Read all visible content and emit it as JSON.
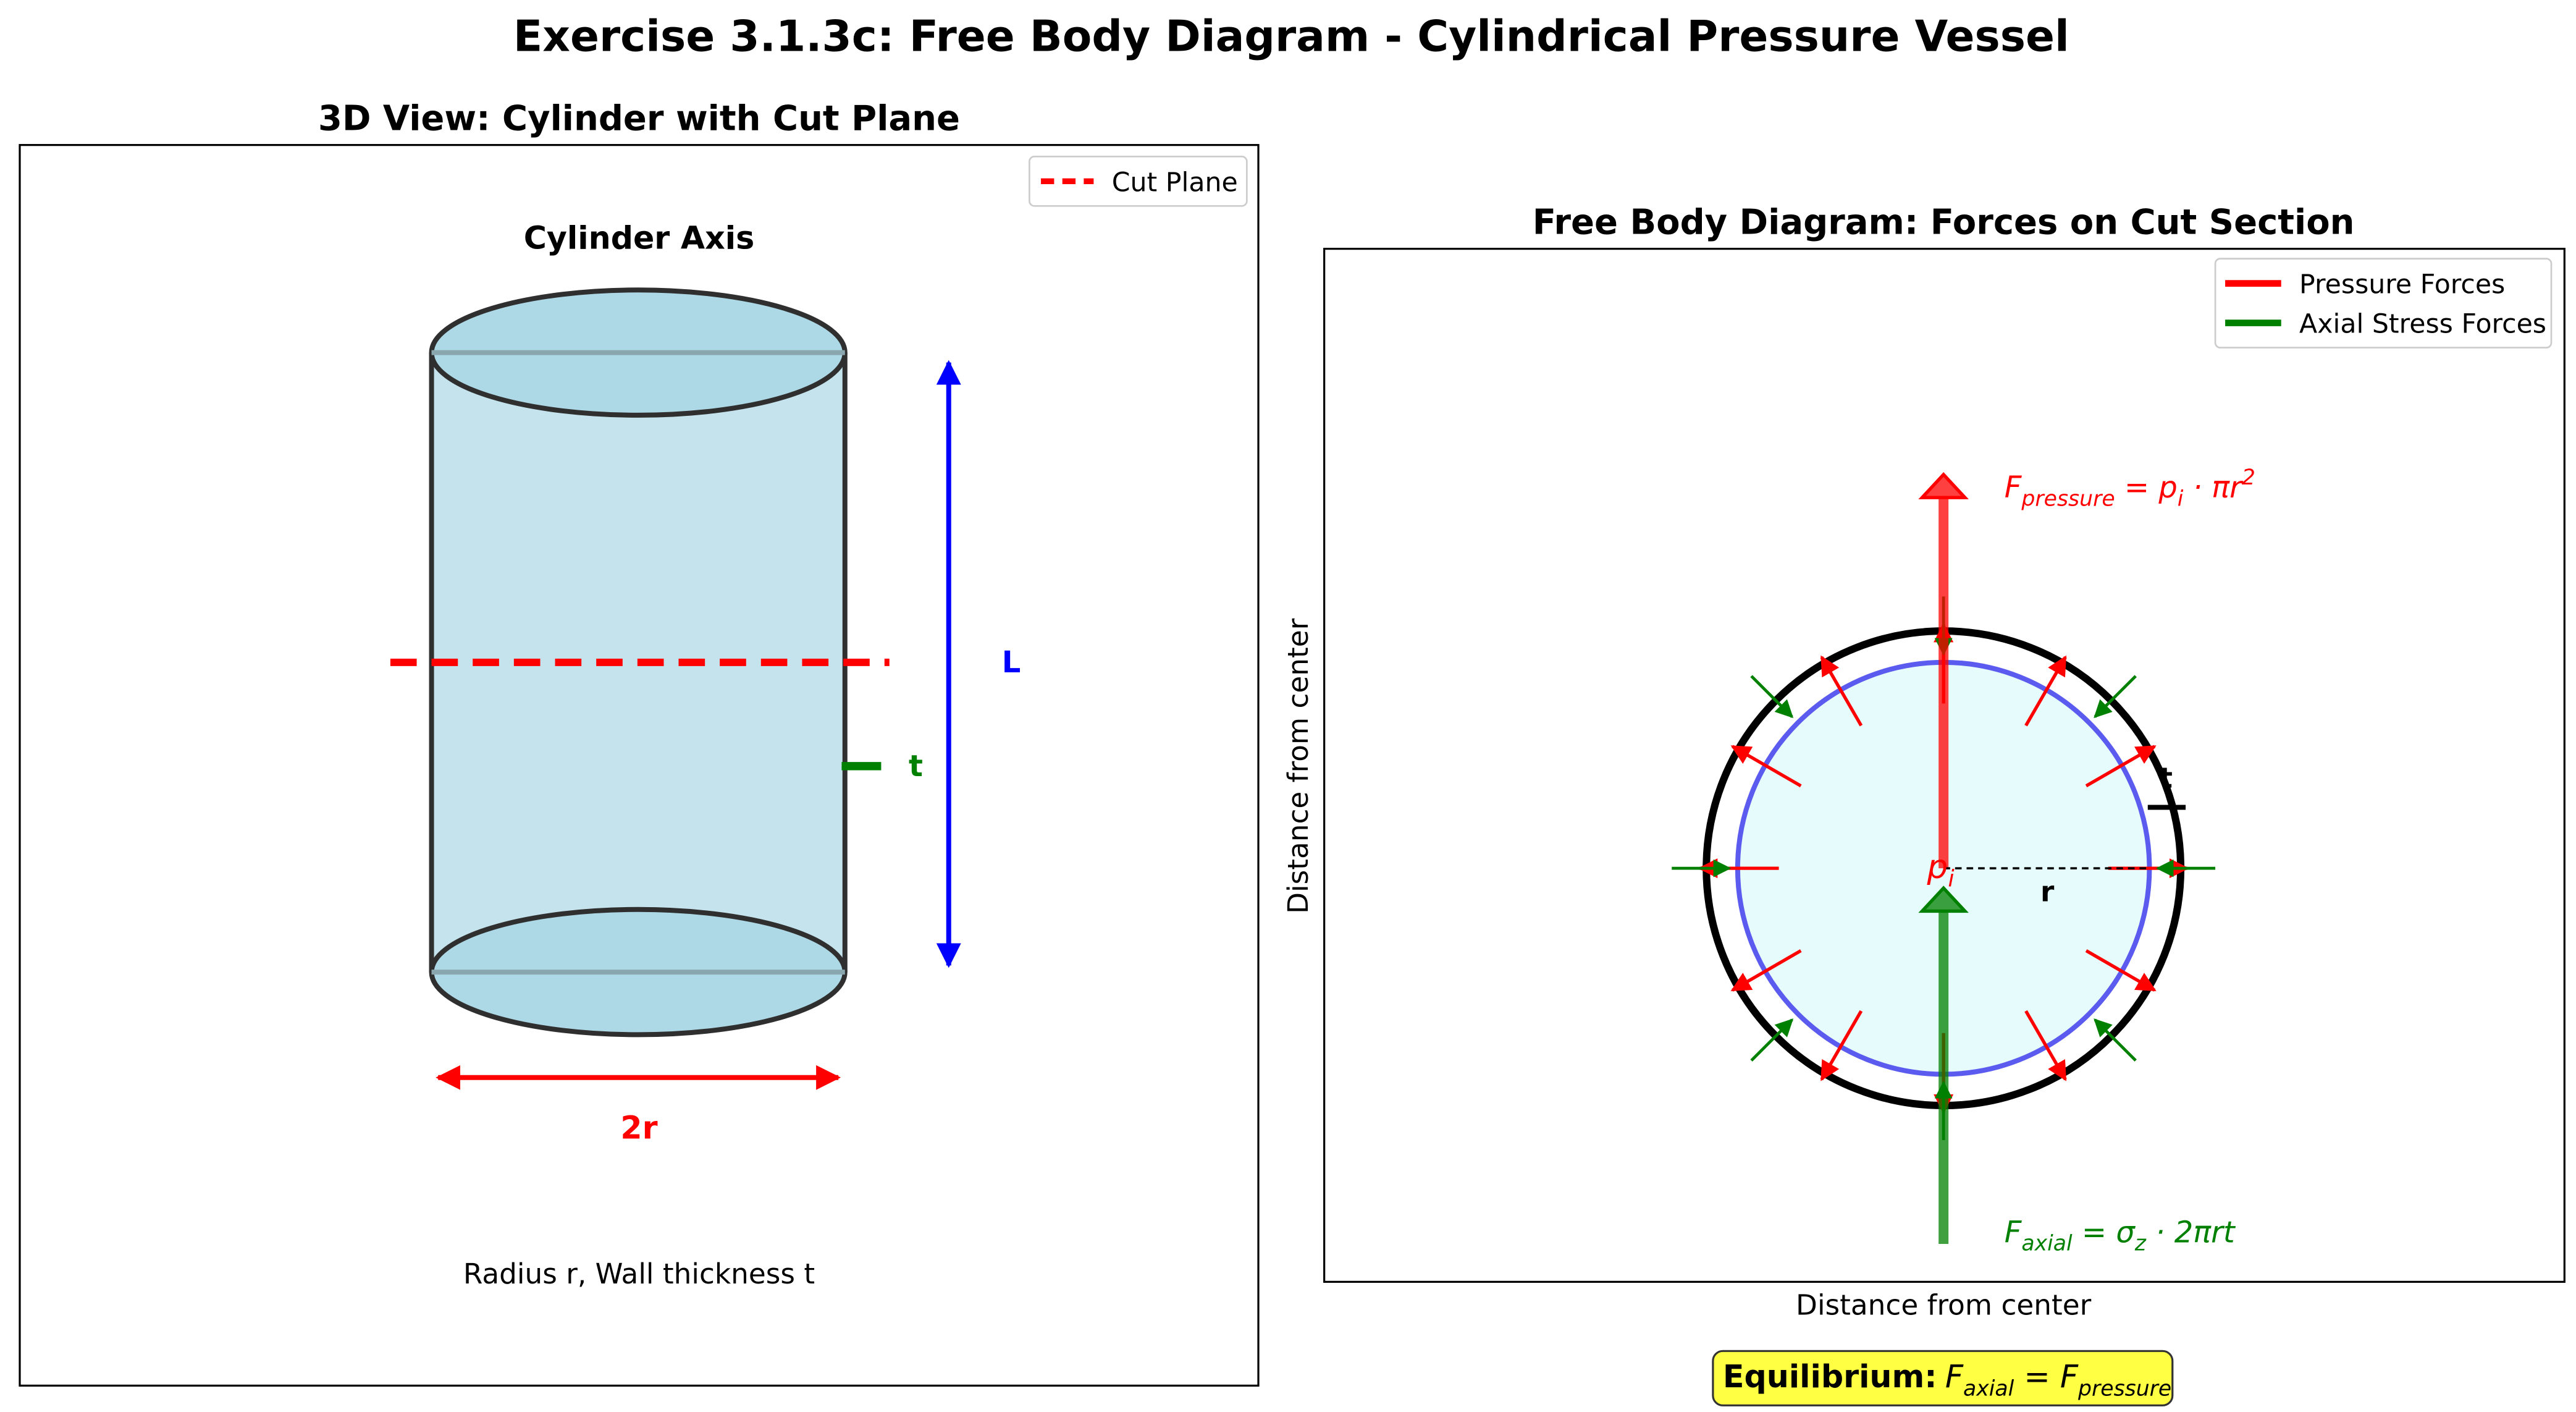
{
  "figure": {
    "title": "Exercise 3.1.3c: Free Body Diagram - Cylindrical Pressure Vessel"
  },
  "left_panel": {
    "title": "3D View: Cylinder with Cut Plane",
    "axis_label": "Cylinder Axis",
    "legend": {
      "cut_plane": "Cut Plane"
    },
    "labels": {
      "length": "L",
      "thickness": "t",
      "diameter": "2r"
    },
    "caption": "Radius r, Wall thickness t",
    "colors": {
      "cylinder_fill": "#add8e6",
      "cylinder_edge": "#333333",
      "cut_plane": "#ff0000",
      "length_arrow": "#0000ff",
      "thickness": "#008000",
      "diameter": "#ff0000"
    }
  },
  "right_panel": {
    "title": "Free Body Diagram: Forces on Cut Section",
    "xlabel": "Distance from center",
    "ylabel": "Distance from center",
    "legend": {
      "pressure": "Pressure Forces",
      "axial": "Axial Stress Forces"
    },
    "labels": {
      "radius": "r",
      "thickness": "t",
      "pressure_symbol": "p",
      "pressure_subscript": "i",
      "f_pressure": {
        "F": "F",
        "sub": "pressure",
        "rest": " = p",
        "sub2": "i",
        "rest2": " · πr",
        "sup": "2"
      },
      "f_axial": {
        "F": "F",
        "sub": "axial",
        "rest": " = σ",
        "sub2": "z",
        "rest2": " · 2πrt"
      }
    },
    "colors": {
      "outer_wall": "#000000",
      "inner_wall": "#5b5bef",
      "inner_fill": "#e6fcfc",
      "pressure": "#ff0000",
      "axial": "#008000"
    }
  },
  "equilibrium": {
    "bold": "Equilibrium:",
    "F1": "F",
    "sub1": "axial",
    "eq": " = ",
    "F2": "F",
    "sub2": "pressure",
    "box_color": "#ffff44"
  }
}
